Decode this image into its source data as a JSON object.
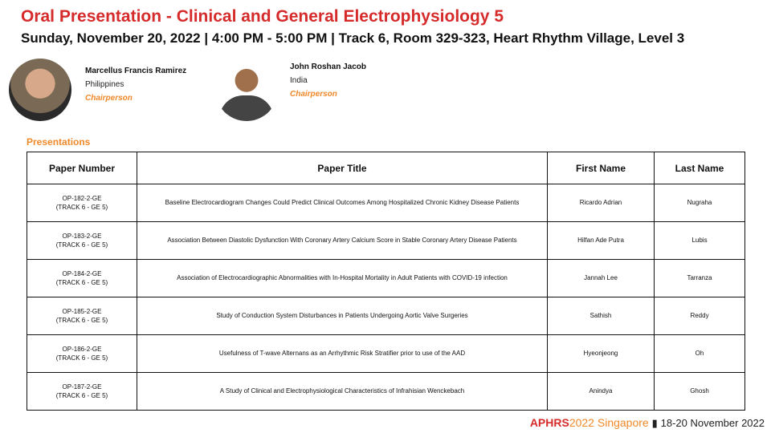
{
  "header": {
    "title": "Oral Presentation - Clinical and General Electrophysiology 5",
    "subtitle": "Sunday, November 20, 2022 | 4:00 PM - 5:00 PM | Track 6, Room 329-323, Heart Rhythm Village, Level 3"
  },
  "chairs": [
    {
      "name": "Marcellus Francis Ramirez",
      "country": "Philippines",
      "role": "Chairperson"
    },
    {
      "name": "John Roshan Jacob",
      "country": "India",
      "role": "Chairperson"
    }
  ],
  "presentations": {
    "label": "Presentations",
    "columns": [
      "Paper Number",
      "Paper Title",
      "First Name",
      "Last Name"
    ],
    "rows": [
      {
        "number": "OP-182-2-GE",
        "track": "(TRACK 6 - GE 5)",
        "title": "Baseline Electrocardiogram Changes Could Predict Clinical Outcomes Among Hospitalized Chronic Kidney Disease Patients",
        "first": "Ricardo Adrian",
        "last": "Nugraha"
      },
      {
        "number": "OP-183-2-GE",
        "track": "(TRACK 6 - GE 5)",
        "title": "Association Between Diastolic Dysfunction With Coronary Artery Calcium Score in Stable Coronary Artery Disease Patients",
        "first": "Hilfan Ade Putra",
        "last": "Lubis"
      },
      {
        "number": "OP-184-2-GE",
        "track": "(TRACK 6 - GE 5)",
        "title": "Association of Electrocardiographic Abnormalities with In-Hospital Mortality in Adult Patients with COVID-19 infection",
        "first": "Jannah Lee",
        "last": "Tarranza"
      },
      {
        "number": "OP-185-2-GE",
        "track": "(TRACK 6 - GE 5)",
        "title": "Study of Conduction System Disturbances in Patients Undergoing Aortic Valve Surgeries",
        "first": "Sathish",
        "last": "Reddy"
      },
      {
        "number": "OP-186-2-GE",
        "track": "(TRACK 6 - GE 5)",
        "title": "Usefulness of T-wave Alternans as an Arrhythmic Risk Stratifier prior to use of the AAD",
        "first": "Hyeonjeong",
        "last": "Oh"
      },
      {
        "number": "OP-187-2-GE",
        "track": "(TRACK 6 - GE 5)",
        "title": "A Study of Clinical and Electrophysiological Characteristics of Infrahisian Wenckebach",
        "first": "Anindya",
        "last": "Ghosh"
      }
    ]
  },
  "footer": {
    "brand": "APHRS",
    "year": "2022",
    "city": "Singapore",
    "separator": "▮",
    "dates": "18-20 November 2022"
  }
}
